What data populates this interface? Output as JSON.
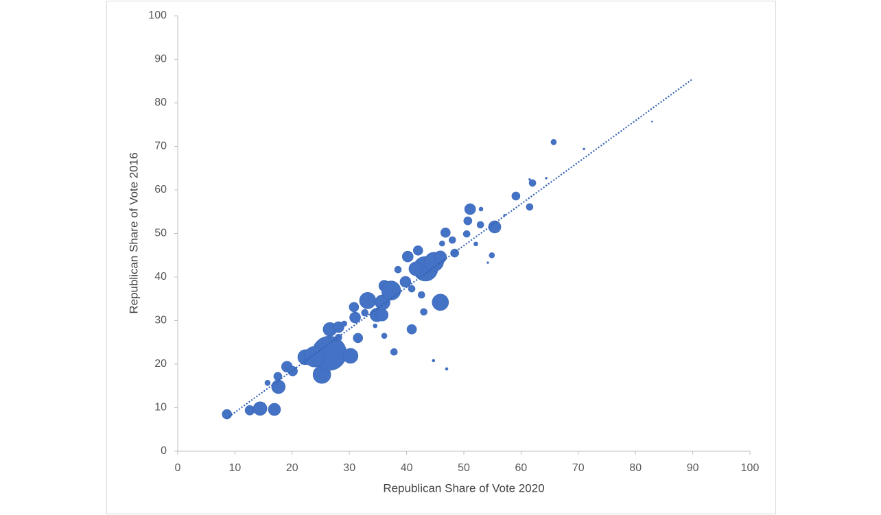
{
  "chart_data": {
    "type": "bubble",
    "x_label": "Republican Share of Vote 2020",
    "y_label": "Republican Share of Vote 2016",
    "color": "#4472c4",
    "xlim": [
      0,
      100
    ],
    "ylim": [
      0,
      100
    ],
    "xticks": [
      0,
      10,
      20,
      30,
      40,
      50,
      60,
      70,
      80,
      90,
      100
    ],
    "yticks": [
      0,
      10,
      20,
      30,
      40,
      50,
      60,
      70,
      80,
      90,
      100
    ],
    "grid": false,
    "x": [
      8.6,
      12.6,
      14.4,
      16.9,
      17.6,
      15.7,
      17.5,
      19.1,
      20.1,
      22.3,
      25.2,
      26.5,
      23.9,
      30.2,
      26.6,
      28.1,
      29.1,
      28.1,
      31.5,
      31.0,
      30.8,
      33.2,
      32.7,
      34.8,
      35.7,
      35.8,
      36.1,
      37.3,
      38.5,
      39.8,
      40.9,
      40.2,
      42.0,
      42.6,
      43.0,
      40.9,
      37.8,
      36.1,
      34.5,
      45.9,
      43.3,
      44.8,
      45.9,
      41.6,
      46.8,
      48.0,
      46.2,
      48.4,
      51.1,
      50.7,
      50.5,
      52.9,
      55.4,
      52.1,
      54.9,
      53.0,
      59.1,
      61.5,
      62.0,
      65.7,
      44.7,
      47.0,
      54.2,
      57.1,
      64.4,
      71.0,
      82.9,
      61.5
    ],
    "y": [
      8.5,
      9.4,
      9.8,
      9.6,
      14.8,
      15.7,
      17.2,
      19.4,
      18.4,
      21.6,
      17.6,
      22.5,
      21.7,
      21.9,
      28.0,
      28.5,
      29.3,
      26.1,
      26.0,
      30.7,
      33.1,
      34.6,
      31.8,
      31.3,
      31.3,
      34.2,
      38.0,
      36.9,
      41.7,
      38.9,
      37.3,
      44.7,
      46.1,
      35.9,
      32.0,
      28.0,
      22.8,
      26.5,
      28.8,
      34.2,
      41.9,
      43.5,
      44.6,
      41.9,
      50.2,
      48.5,
      47.7,
      45.5,
      55.6,
      52.9,
      49.9,
      52.0,
      51.5,
      47.6,
      45.0,
      55.6,
      58.6,
      56.1,
      61.6,
      71.0,
      20.8,
      18.9,
      43.3,
      54.2,
      62.7,
      69.4,
      75.7,
      62.4
    ],
    "sizes": [
      49,
      49,
      100,
      81,
      100,
      16,
      36,
      64,
      49,
      121,
      169,
      625,
      225,
      121,
      100,
      64,
      16,
      25,
      49,
      64,
      49,
      144,
      25,
      100,
      81,
      121,
      64,
      196,
      25,
      64,
      25,
      64,
      49,
      25,
      25,
      49,
      25,
      16,
      9,
      144,
      324,
      196,
      81,
      100,
      49,
      25,
      16,
      36,
      64,
      36,
      25,
      25,
      81,
      9,
      16,
      9,
      36,
      25,
      25,
      16,
      4,
      4,
      2,
      2,
      2,
      2,
      1,
      2
    ],
    "trendline": {
      "x": [
        8.5,
        90
      ],
      "y": [
        7.5,
        85.5
      ],
      "color": "#2f5fb3"
    }
  }
}
